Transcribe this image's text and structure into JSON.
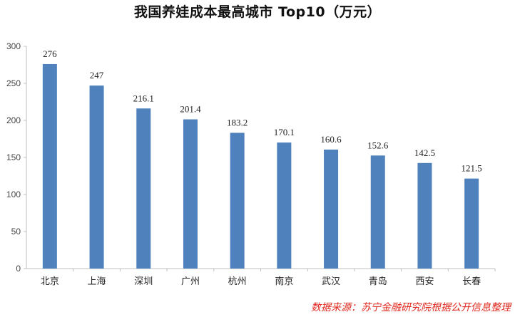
{
  "chart_data": {
    "type": "bar",
    "title": "我国养娃成本最高城市 Top10（万元）",
    "categories": [
      "北京",
      "上海",
      "深圳",
      "广州",
      "杭州",
      "南京",
      "武汉",
      "青岛",
      "西安",
      "长春"
    ],
    "values": [
      276,
      247,
      216.1,
      201.4,
      183.2,
      170.1,
      160.6,
      152.6,
      142.5,
      121.5
    ],
    "value_labels": [
      "276",
      "247",
      "216.1",
      "201.4",
      "183.2",
      "170.1",
      "160.6",
      "152.6",
      "142.5",
      "121.5"
    ],
    "yticks": [
      0,
      50,
      100,
      150,
      200,
      250,
      300
    ],
    "ylim": [
      0,
      300
    ],
    "xlabel": "",
    "ylabel": "",
    "grid": false,
    "legend": "none",
    "bar_color": "#4f81bd"
  },
  "source": "数据来源：苏宁金融研究院根据公开信息整理"
}
